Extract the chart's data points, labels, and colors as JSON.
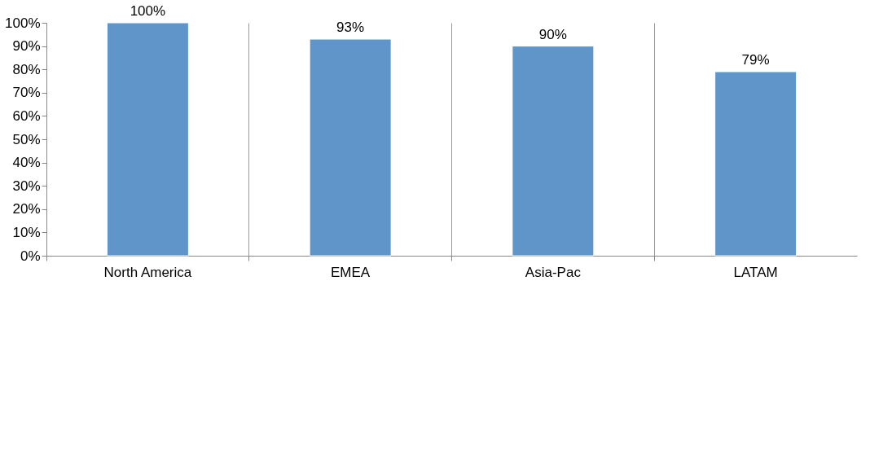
{
  "chart_data": {
    "type": "bar",
    "categories": [
      "North America",
      "EMEA",
      "Asia-Pac",
      "LATAM"
    ],
    "values": [
      100,
      93,
      90,
      79
    ],
    "value_labels": [
      "100%",
      "93%",
      "90%",
      "79%"
    ],
    "color": "#5f95c8",
    "ylim": [
      0,
      100
    ],
    "yticks": [
      {
        "value": 0,
        "label": "0%"
      },
      {
        "value": 10,
        "label": "10%"
      },
      {
        "value": 20,
        "label": "20%"
      },
      {
        "value": 30,
        "label": "30%"
      },
      {
        "value": 40,
        "label": "40%"
      },
      {
        "value": 50,
        "label": "50%"
      },
      {
        "value": 60,
        "label": "60%"
      },
      {
        "value": 70,
        "label": "70%"
      },
      {
        "value": 80,
        "label": "80%"
      },
      {
        "value": 90,
        "label": "90%"
      },
      {
        "value": 100,
        "label": "100%"
      }
    ],
    "grid": "x"
  }
}
